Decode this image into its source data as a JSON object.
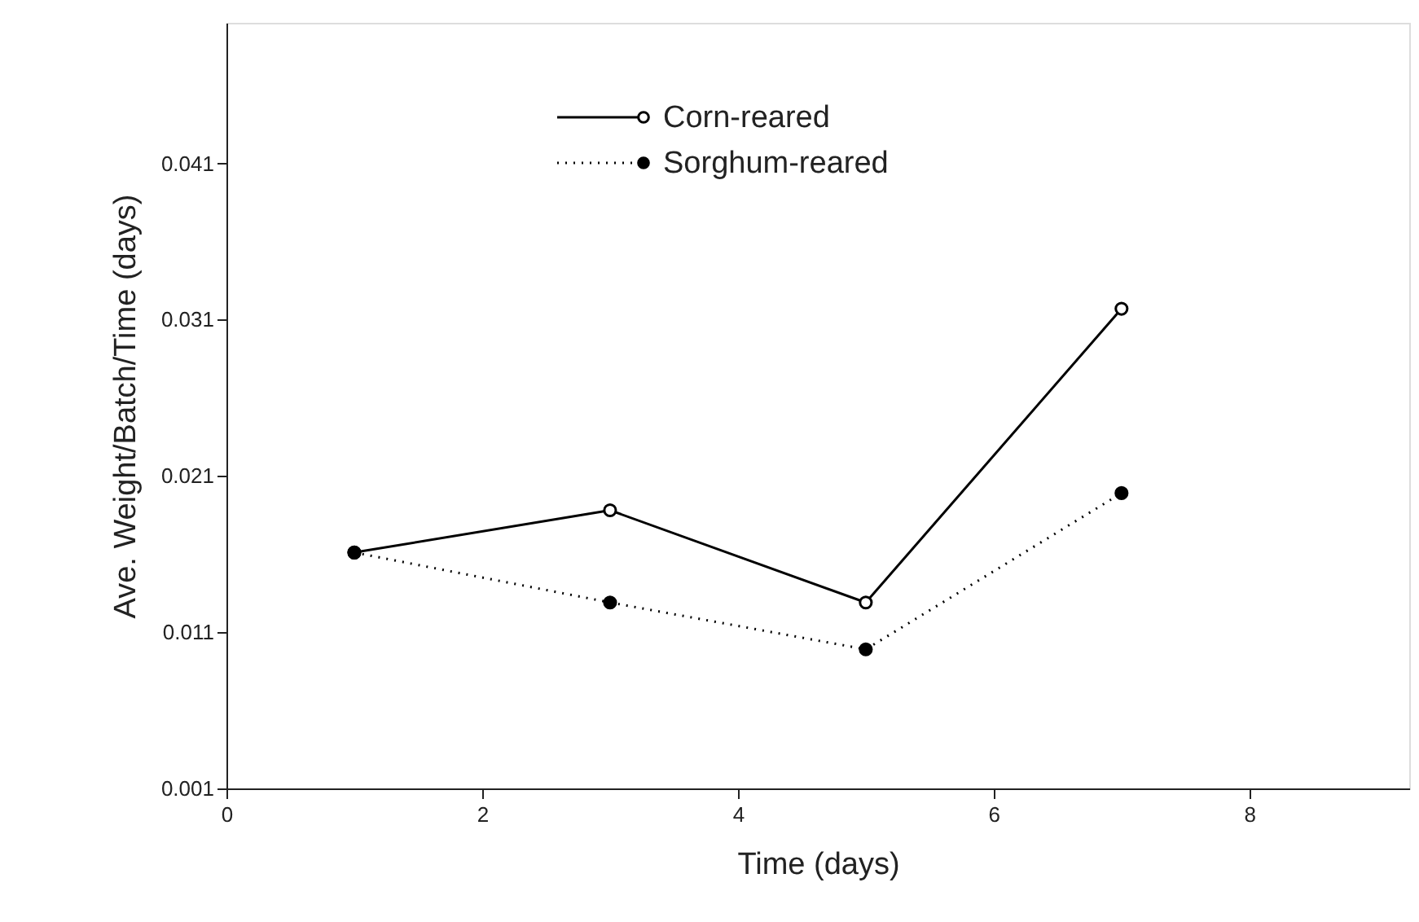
{
  "chart_data": {
    "type": "line",
    "xlabel": "Time (days)",
    "ylabel": "Ave. Weight/Batch/Time (days)",
    "xlim": [
      0,
      9.25
    ],
    "xticks": [
      0,
      2,
      4,
      6,
      8
    ],
    "ylim": [
      0.001,
      0.05
    ],
    "yticks": [
      0.001,
      0.011,
      0.021,
      0.031,
      0.041
    ],
    "grid": false,
    "legend": "top",
    "marker": "circle",
    "series": [
      {
        "name": "Corn-reared",
        "color": "#000000",
        "line_style": "solid",
        "x": [
          1,
          3,
          5,
          7
        ],
        "values": [
          0.0161,
          0.0188,
          0.0129,
          0.0317
        ]
      },
      {
        "name": "Sorghum-reared",
        "color": "#000000",
        "line_style": "dotted",
        "x": [
          1,
          3,
          5,
          7
        ],
        "values": [
          0.0161,
          0.0129,
          0.0099,
          0.0199
        ]
      }
    ]
  }
}
